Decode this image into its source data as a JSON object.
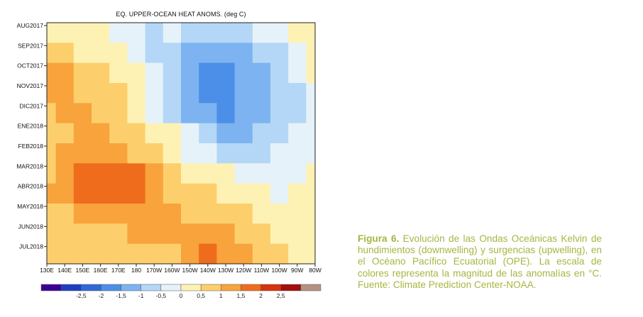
{
  "chart_data": {
    "type": "heatmap",
    "title": "EQ. UPPER-OCEAN HEAT ANOMS. (deg C)",
    "y_categories": [
      "AUG2017",
      "SEP2017",
      "OCT2017",
      "NOV2017",
      "DIC2017",
      "ENE2018",
      "FEB2018",
      "MAR2018",
      "ABR2018",
      "MAY2018",
      "JUN2018",
      "JUL2018"
    ],
    "x_categories": [
      "130E",
      "140E",
      "150E",
      "160E",
      "170E",
      "180",
      "170W",
      "160W",
      "150W",
      "140W",
      "130W",
      "120W",
      "110W",
      "100W",
      "90W",
      "80W"
    ],
    "z_grid": [
      [
        0.3,
        0.3,
        0.2,
        0.0,
        -0.3,
        -0.5,
        -0.6,
        -0.5,
        -0.8,
        -1.0,
        -0.8,
        -0.6,
        -0.4,
        -0.3,
        0.0,
        0.2
      ],
      [
        0.6,
        0.5,
        0.4,
        0.2,
        0.0,
        -0.3,
        -0.6,
        -0.9,
        -1.4,
        -1.5,
        -1.3,
        -1.1,
        -0.9,
        -0.6,
        -0.3,
        0.1
      ],
      [
        1.0,
        1.0,
        0.8,
        0.6,
        0.3,
        0.0,
        -0.5,
        -1.0,
        -1.5,
        -1.7,
        -1.6,
        -1.4,
        -1.2,
        -0.9,
        -0.5,
        0.0
      ],
      [
        1.1,
        1.1,
        0.9,
        0.8,
        0.5,
        0.1,
        -0.4,
        -0.9,
        -1.5,
        -1.8,
        -1.7,
        -1.5,
        -1.3,
        -1.0,
        -0.6,
        -0.1
      ],
      [
        0.9,
        1.0,
        1.0,
        0.9,
        0.6,
        0.3,
        -0.1,
        -0.6,
        -1.2,
        -1.5,
        -1.6,
        -1.5,
        -1.2,
        -0.9,
        -0.6,
        -0.2
      ],
      [
        0.8,
        0.9,
        1.0,
        1.0,
        0.9,
        0.7,
        0.4,
        0.0,
        -0.5,
        -0.9,
        -1.1,
        -1.1,
        -0.9,
        -0.7,
        -0.5,
        -0.2
      ],
      [
        0.9,
        1.0,
        1.1,
        1.2,
        1.1,
        0.9,
        0.6,
        0.3,
        -0.1,
        -0.4,
        -0.6,
        -0.6,
        -0.6,
        -0.5,
        -0.3,
        -0.1
      ],
      [
        0.9,
        1.2,
        1.6,
        1.8,
        1.7,
        1.5,
        1.1,
        0.7,
        0.4,
        0.2,
        0.0,
        -0.2,
        -0.3,
        -0.3,
        -0.2,
        0.0
      ],
      [
        1.0,
        1.2,
        1.5,
        1.6,
        1.6,
        1.5,
        1.2,
        0.9,
        0.7,
        0.5,
        0.4,
        0.2,
        0.0,
        -0.1,
        0.0,
        0.1
      ],
      [
        0.8,
        0.9,
        1.1,
        1.2,
        1.2,
        1.2,
        1.1,
        1.0,
        0.9,
        0.8,
        0.7,
        0.5,
        0.3,
        0.2,
        0.1,
        0.1
      ],
      [
        0.7,
        0.6,
        0.6,
        0.7,
        0.9,
        1.0,
        1.0,
        1.0,
        1.0,
        1.4,
        1.3,
        0.9,
        0.6,
        0.4,
        0.3,
        0.2
      ],
      [
        0.6,
        0.5,
        0.5,
        0.6,
        0.8,
        0.9,
        0.9,
        0.9,
        1.0,
        1.5,
        1.4,
        1.0,
        0.7,
        0.5,
        0.3,
        0.2
      ]
    ],
    "colorbar": {
      "ticks": [
        "-2,5",
        "-2",
        "-1,5",
        "-1",
        "-0,5",
        "0",
        "0,5",
        "1",
        "1,5",
        "2",
        "2,5"
      ],
      "colors": [
        "#3c0096",
        "#1e40c0",
        "#2e6ad8",
        "#4b8fe8",
        "#7db3f0",
        "#b4d7f7",
        "#e6f2fa",
        "#fdf2b4",
        "#fdcf6c",
        "#f8a33c",
        "#ef6c1c",
        "#d9320e",
        "#a30e0e",
        "#b59280"
      ]
    }
  },
  "caption": {
    "figure_label": "Figura 6.",
    "text": " Evolución de las Ondas Oceánicas Kelvin de hundimientos (downwelling) y surgencias (upwelling), en el Océano Pacífico Ecuatorial (OPE). La escala de colores representa la magnitud de las anomalías en °C. Fuente: Climate Prediction Center-NOAA."
  }
}
